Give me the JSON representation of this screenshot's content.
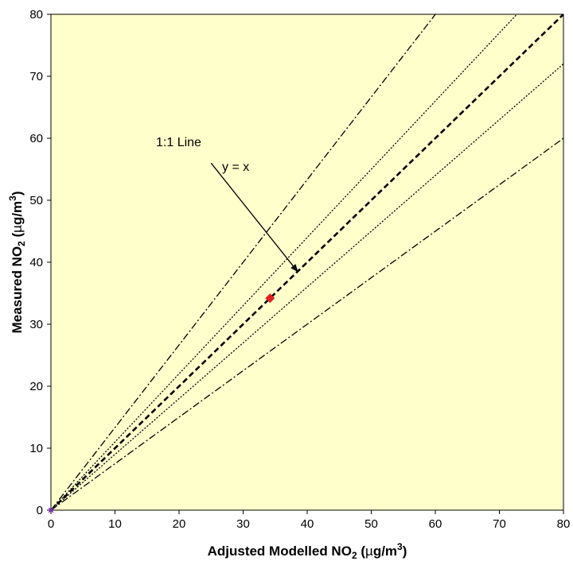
{
  "chart_data": {
    "type": "scatter",
    "xlabel": {
      "main": "Adjusted Modelled NO",
      "sub": "2",
      "unit_open": " (",
      "mu": "µ",
      "unit_rest": "g/m",
      "sup": "3",
      "unit_close": ")"
    },
    "ylabel": {
      "main": "Measured NO",
      "sub": "2",
      "unit_open": " (",
      "mu": "µ",
      "unit_rest": "g/m",
      "sup": "3",
      "unit_close": ")"
    },
    "xlim": [
      0,
      80
    ],
    "ylim": [
      0,
      80
    ],
    "xticks": [
      0,
      10,
      20,
      30,
      40,
      50,
      60,
      70,
      80
    ],
    "yticks": [
      0,
      10,
      20,
      30,
      40,
      50,
      60,
      70,
      80
    ],
    "grid": false,
    "plot_background": "#ffffcc",
    "reference_lines": [
      {
        "slope": 1.0,
        "style": "dashed-thick"
      },
      {
        "slope": 1.1,
        "style": "dotted"
      },
      {
        "slope": 0.9,
        "style": "dotted"
      },
      {
        "slope": 1.333,
        "style": "dash-dot"
      },
      {
        "slope": 0.75,
        "style": "dash-dot"
      }
    ],
    "series": [
      {
        "marker": "diamond",
        "color": "#e02020",
        "points": [
          {
            "x": 34.2,
            "y": 34.2
          }
        ]
      },
      {
        "marker": "star",
        "color": "#7030a0",
        "points": [
          {
            "x": 0,
            "y": 0
          }
        ]
      }
    ],
    "annotations": {
      "line_label": "1:1 Line",
      "equation": "y = x",
      "arrow_from": [
        25,
        56
      ],
      "arrow_to": [
        38.5,
        38.5
      ]
    }
  }
}
